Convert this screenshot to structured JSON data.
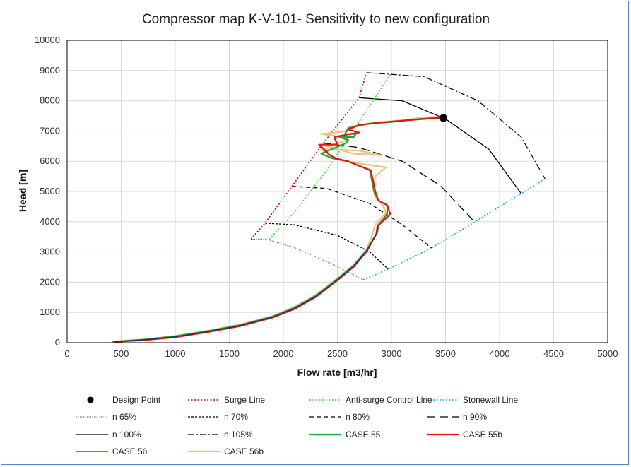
{
  "chart_data": {
    "type": "line",
    "title": "Compressor map K-V-101- Sensitivity to new configuration",
    "xlabel": "Flow rate [m3/hr]",
    "ylabel": "Head [m]",
    "xlim": [
      0,
      5000
    ],
    "ylim": [
      0,
      10000
    ],
    "xticks": [
      "0",
      "500",
      "1000",
      "1500",
      "2000",
      "2500",
      "3000",
      "3500",
      "4000",
      "4500",
      "5000"
    ],
    "yticks": [
      "0",
      "1000",
      "2000",
      "3000",
      "4000",
      "5000",
      "6000",
      "7000",
      "8000",
      "9000",
      "10000"
    ],
    "grid": true,
    "legend_position": "bottom",
    "series": [
      {
        "name": "Design Point",
        "style": "marker",
        "color": "#000000",
        "points": [
          [
            3480,
            7430
          ]
        ]
      },
      {
        "name": "Surge Line",
        "style": "dotted",
        "color": "#c00000",
        "points": [
          [
            1700,
            3420
          ],
          [
            1830,
            3950
          ],
          [
            2080,
            5170
          ],
          [
            2370,
            6600
          ],
          [
            2700,
            8100
          ],
          [
            2770,
            8930
          ]
        ]
      },
      {
        "name": "Anti-surge Control Line",
        "style": "dotted",
        "color": "#33dd33",
        "points": [
          [
            1870,
            3420
          ],
          [
            2100,
            4300
          ],
          [
            2400,
            5700
          ],
          [
            2700,
            7300
          ],
          [
            3000,
            8930
          ]
        ]
      },
      {
        "name": "Stonewall Line",
        "style": "dotted",
        "color": "#22aadd",
        "points": [
          [
            2740,
            2080
          ],
          [
            2970,
            2430
          ],
          [
            3370,
            3130
          ],
          [
            3770,
            3990
          ],
          [
            4200,
            4930
          ],
          [
            4420,
            5420
          ]
        ]
      },
      {
        "name": "n 65%",
        "style": "dot-fine",
        "color": "#555555",
        "points": [
          [
            1700,
            3420
          ],
          [
            1830,
            3430
          ],
          [
            2100,
            3150
          ],
          [
            2450,
            2600
          ],
          [
            2740,
            2080
          ]
        ]
      },
      {
        "name": "n 70%",
        "style": "dash-short",
        "color": "#000000",
        "points": [
          [
            1830,
            3950
          ],
          [
            2100,
            3900
          ],
          [
            2500,
            3550
          ],
          [
            2800,
            3000
          ],
          [
            2970,
            2430
          ]
        ]
      },
      {
        "name": "n 80%",
        "style": "dash-med",
        "color": "#000000",
        "points": [
          [
            2080,
            5170
          ],
          [
            2400,
            5100
          ],
          [
            2800,
            4600
          ],
          [
            3100,
            3900
          ],
          [
            3370,
            3130
          ]
        ]
      },
      {
        "name": "n 90%",
        "style": "dash-long",
        "color": "#000000",
        "points": [
          [
            2370,
            6600
          ],
          [
            2700,
            6450
          ],
          [
            3100,
            6000
          ],
          [
            3450,
            5200
          ],
          [
            3770,
            3990
          ]
        ]
      },
      {
        "name": "n 100%",
        "style": "solid",
        "color": "#000000",
        "points": [
          [
            2700,
            8100
          ],
          [
            3100,
            8000
          ],
          [
            3500,
            7400
          ],
          [
            3900,
            6400
          ],
          [
            4200,
            4930
          ]
        ]
      },
      {
        "name": "n 105%",
        "style": "dash-dot",
        "color": "#000000",
        "points": [
          [
            2770,
            8930
          ],
          [
            3300,
            8800
          ],
          [
            3800,
            8000
          ],
          [
            4200,
            6800
          ],
          [
            4420,
            5420
          ]
        ]
      },
      {
        "name": "CASE 55",
        "style": "solid-thick",
        "color": "#1aaa3a",
        "points": [
          [
            420,
            30
          ],
          [
            700,
            100
          ],
          [
            1000,
            210
          ],
          [
            1300,
            380
          ],
          [
            1600,
            580
          ],
          [
            1900,
            860
          ],
          [
            2100,
            1150
          ],
          [
            2300,
            1550
          ],
          [
            2500,
            2100
          ],
          [
            2650,
            2550
          ],
          [
            2770,
            3050
          ],
          [
            2870,
            3650
          ],
          [
            2880,
            3900
          ],
          [
            2960,
            4250
          ],
          [
            2960,
            4550
          ],
          [
            2880,
            4700
          ],
          [
            2840,
            5000
          ],
          [
            2800,
            5700
          ],
          [
            2600,
            6000
          ],
          [
            2450,
            6100
          ],
          [
            2350,
            6250
          ],
          [
            2580,
            6600
          ],
          [
            2600,
            6700
          ],
          [
            2520,
            6800
          ],
          [
            2650,
            6800
          ],
          [
            2670,
            6900
          ],
          [
            2570,
            6900
          ],
          [
            2600,
            7100
          ],
          [
            2800,
            7250
          ],
          [
            3000,
            7300
          ],
          [
            3200,
            7380
          ],
          [
            3400,
            7430
          ],
          [
            3480,
            7430
          ]
        ]
      },
      {
        "name": "CASE 55b",
        "style": "solid-thick",
        "color": "#ee1111",
        "points": [
          [
            440,
            30
          ],
          [
            700,
            80
          ],
          [
            1000,
            180
          ],
          [
            1300,
            350
          ],
          [
            1600,
            550
          ],
          [
            1900,
            830
          ],
          [
            2100,
            1110
          ],
          [
            2300,
            1510
          ],
          [
            2500,
            2060
          ],
          [
            2650,
            2510
          ],
          [
            2770,
            3010
          ],
          [
            2860,
            3600
          ],
          [
            2870,
            3850
          ],
          [
            2990,
            4250
          ],
          [
            2960,
            4550
          ],
          [
            2880,
            4700
          ],
          [
            2850,
            5000
          ],
          [
            2810,
            5700
          ],
          [
            2600,
            5990
          ],
          [
            2480,
            6100
          ],
          [
            2430,
            6200
          ],
          [
            2330,
            6550
          ],
          [
            2500,
            6550
          ],
          [
            2470,
            6800
          ],
          [
            2620,
            6900
          ],
          [
            2700,
            6950
          ],
          [
            2600,
            7050
          ],
          [
            2700,
            7200
          ],
          [
            2900,
            7280
          ],
          [
            3200,
            7370
          ],
          [
            3400,
            7430
          ],
          [
            3480,
            7430
          ]
        ]
      },
      {
        "name": "CASE 56",
        "style": "solid",
        "color": "#1a2d6e",
        "points": [
          [
            430,
            30
          ],
          [
            700,
            90
          ],
          [
            1000,
            195
          ],
          [
            1300,
            365
          ],
          [
            1600,
            565
          ],
          [
            1900,
            845
          ],
          [
            2100,
            1130
          ],
          [
            2300,
            1530
          ],
          [
            2500,
            2080
          ],
          [
            2650,
            2530
          ],
          [
            2770,
            3030
          ],
          [
            2865,
            3625
          ],
          [
            2875,
            3875
          ]
        ]
      },
      {
        "name": "CASE 56b",
        "style": "solid-thick",
        "color": "#f0c080",
        "points": [
          [
            410,
            40
          ],
          [
            700,
            110
          ],
          [
            1000,
            220
          ],
          [
            1300,
            400
          ],
          [
            1600,
            600
          ],
          [
            1900,
            880
          ],
          [
            2100,
            1180
          ],
          [
            2300,
            1580
          ],
          [
            2500,
            2130
          ],
          [
            2650,
            2580
          ],
          [
            2770,
            3080
          ],
          [
            2820,
            3550
          ],
          [
            2850,
            3900
          ],
          [
            2950,
            4300
          ],
          [
            2920,
            4550
          ],
          [
            2850,
            4800
          ],
          [
            2830,
            5100
          ],
          [
            2850,
            5500
          ],
          [
            2950,
            5800
          ],
          [
            2750,
            5900
          ],
          [
            2500,
            6050
          ],
          [
            2350,
            6400
          ],
          [
            2700,
            6350
          ],
          [
            2900,
            6200
          ],
          [
            2650,
            6250
          ],
          [
            2400,
            6500
          ],
          [
            2600,
            6700
          ],
          [
            2460,
            6850
          ],
          [
            2350,
            6900
          ],
          [
            2600,
            7000
          ],
          [
            2640,
            7150
          ],
          [
            2900,
            7300
          ],
          [
            3100,
            7350
          ],
          [
            3300,
            7450
          ],
          [
            3400,
            7460
          ],
          [
            3480,
            7450
          ]
        ]
      }
    ]
  },
  "colors": {
    "frame_border": "#4a86c8",
    "grid": "#d9d9d9",
    "plot_border": "#000000"
  }
}
